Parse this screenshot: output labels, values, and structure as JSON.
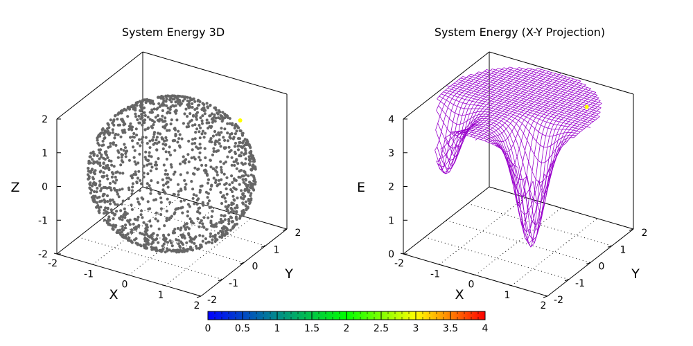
{
  "chart_data": [
    {
      "type": "scatter",
      "title": "System Energy 3D",
      "xlabel": "X",
      "ylabel": "Y",
      "zlabel": "Z",
      "xlim": [
        -2,
        2
      ],
      "ylim": [
        -2,
        2
      ],
      "zlim": [
        -2,
        2
      ],
      "x_ticks": [
        "-2",
        "-1",
        "0",
        "1",
        "2"
      ],
      "y_ticks": [
        "-2",
        "-1",
        "0",
        "1",
        "2"
      ],
      "z_ticks": [
        "-2",
        "-1",
        "0",
        "1",
        "2"
      ],
      "point_color": "#666666",
      "highlight_color": "#ffff00",
      "description_geometry": "points distributed on a sphere of radius 2",
      "highlight_point": {
        "x": 1.3,
        "y": 1.0,
        "z": 1.5
      }
    },
    {
      "type": "surface",
      "title": "System Energy (X-Y Projection)",
      "xlabel": "X",
      "ylabel": "Y",
      "zlabel": "E",
      "xlim": [
        -2,
        2
      ],
      "ylim": [
        -2,
        2
      ],
      "zlim": [
        0,
        4
      ],
      "x_ticks": [
        "-2",
        "-1",
        "0",
        "1",
        "2"
      ],
      "y_ticks": [
        "-2",
        "-1",
        "0",
        "1",
        "2"
      ],
      "z_ticks": [
        "0",
        "1",
        "2",
        "3",
        "4"
      ],
      "mesh_color": "#9900cc",
      "highlight_color": "#ffff00",
      "energy_wells": [
        {
          "x": -1.3,
          "y": -1.2,
          "min_energy": 2.2
        },
        {
          "x": 1.0,
          "y": -1.1,
          "min_energy": 0.7
        }
      ],
      "plateau_energy": 4.0,
      "highlight_point": {
        "x": 1.3,
        "y": 1.0,
        "z": 3.9
      }
    }
  ],
  "colorbar": {
    "min": 0,
    "max": 4,
    "ticks": [
      "0",
      "0.5",
      "1",
      "1.5",
      "2",
      "2.5",
      "3",
      "3.5",
      "4"
    ],
    "colors": [
      "#0000ff",
      "#008b8b",
      "#00ff00",
      "#ffff00",
      "#ff0000"
    ]
  }
}
